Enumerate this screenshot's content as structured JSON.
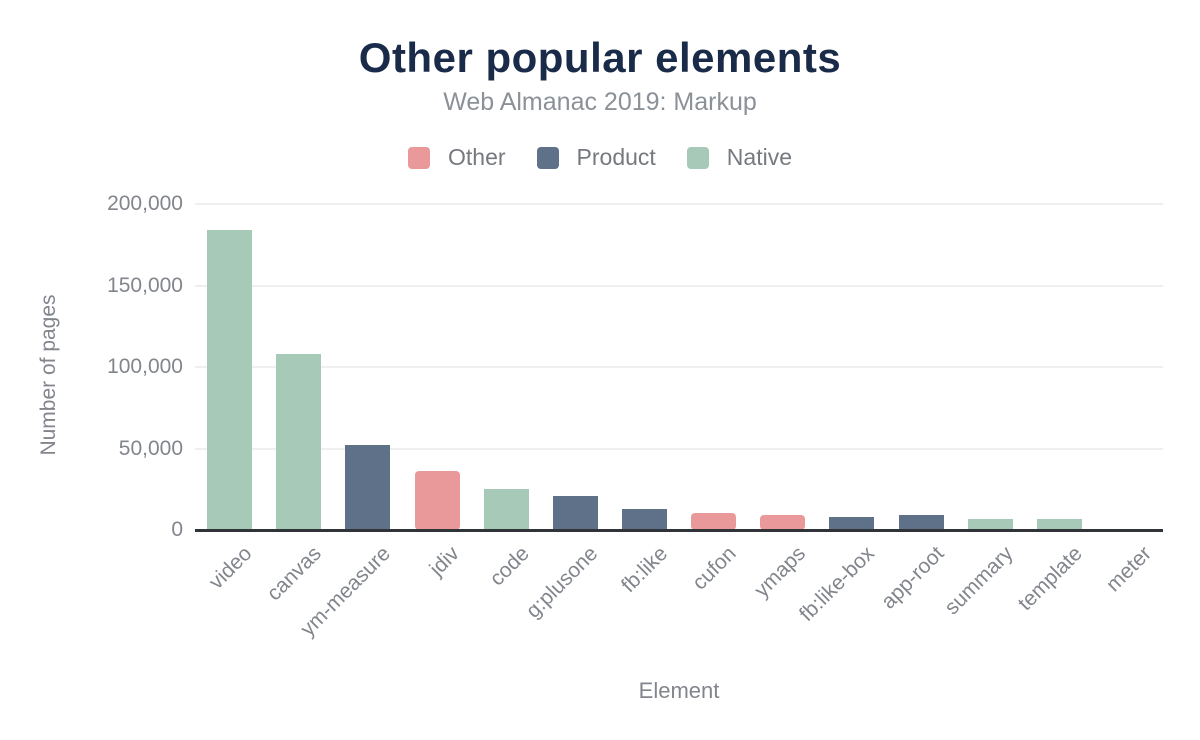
{
  "page": {
    "background": "#ffffff"
  },
  "chart_data": {
    "type": "bar",
    "title": "Other popular elements",
    "subtitle": "Web Almanac 2019: Markup",
    "xlabel": "Element",
    "ylabel": "Number of pages",
    "ylim": [
      0,
      200000
    ],
    "grid": true,
    "legend_position": "top",
    "axis_line_color": "#303338",
    "gridline_color": "#efefef",
    "title_color": "#1a2b49",
    "subtitle_color": "#8b9197",
    "tick_label_color": "#82868c",
    "yticks": [
      {
        "value": 0,
        "label": "0"
      },
      {
        "value": 50000,
        "label": "50,000"
      },
      {
        "value": 100000,
        "label": "100,000"
      },
      {
        "value": 150000,
        "label": "150,000"
      },
      {
        "value": 200000,
        "label": "200,000"
      }
    ],
    "series": [
      {
        "name": "Other",
        "color": "#e9999a"
      },
      {
        "name": "Product",
        "color": "#5f7189"
      },
      {
        "name": "Native",
        "color": "#a7c9b7"
      }
    ],
    "bars": [
      {
        "category": "video",
        "value": 184000,
        "series": "Native"
      },
      {
        "category": "canvas",
        "value": 108000,
        "series": "Native"
      },
      {
        "category": "ym-measure",
        "value": 52000,
        "series": "Product"
      },
      {
        "category": "jdiv",
        "value": 36500,
        "series": "Other"
      },
      {
        "category": "code",
        "value": 25000,
        "series": "Native"
      },
      {
        "category": "g:plusone",
        "value": 21000,
        "series": "Product"
      },
      {
        "category": "fb:like",
        "value": 12700,
        "series": "Product"
      },
      {
        "category": "cufon",
        "value": 10400,
        "series": "Other"
      },
      {
        "category": "ymaps",
        "value": 9200,
        "series": "Other"
      },
      {
        "category": "fb:like-box",
        "value": 8000,
        "series": "Product"
      },
      {
        "category": "app-root",
        "value": 9000,
        "series": "Product"
      },
      {
        "category": "summary",
        "value": 7000,
        "series": "Native"
      },
      {
        "category": "template",
        "value": 7000,
        "series": "Native"
      },
      {
        "category": "meter",
        "value": 500,
        "series": "Native"
      }
    ]
  }
}
